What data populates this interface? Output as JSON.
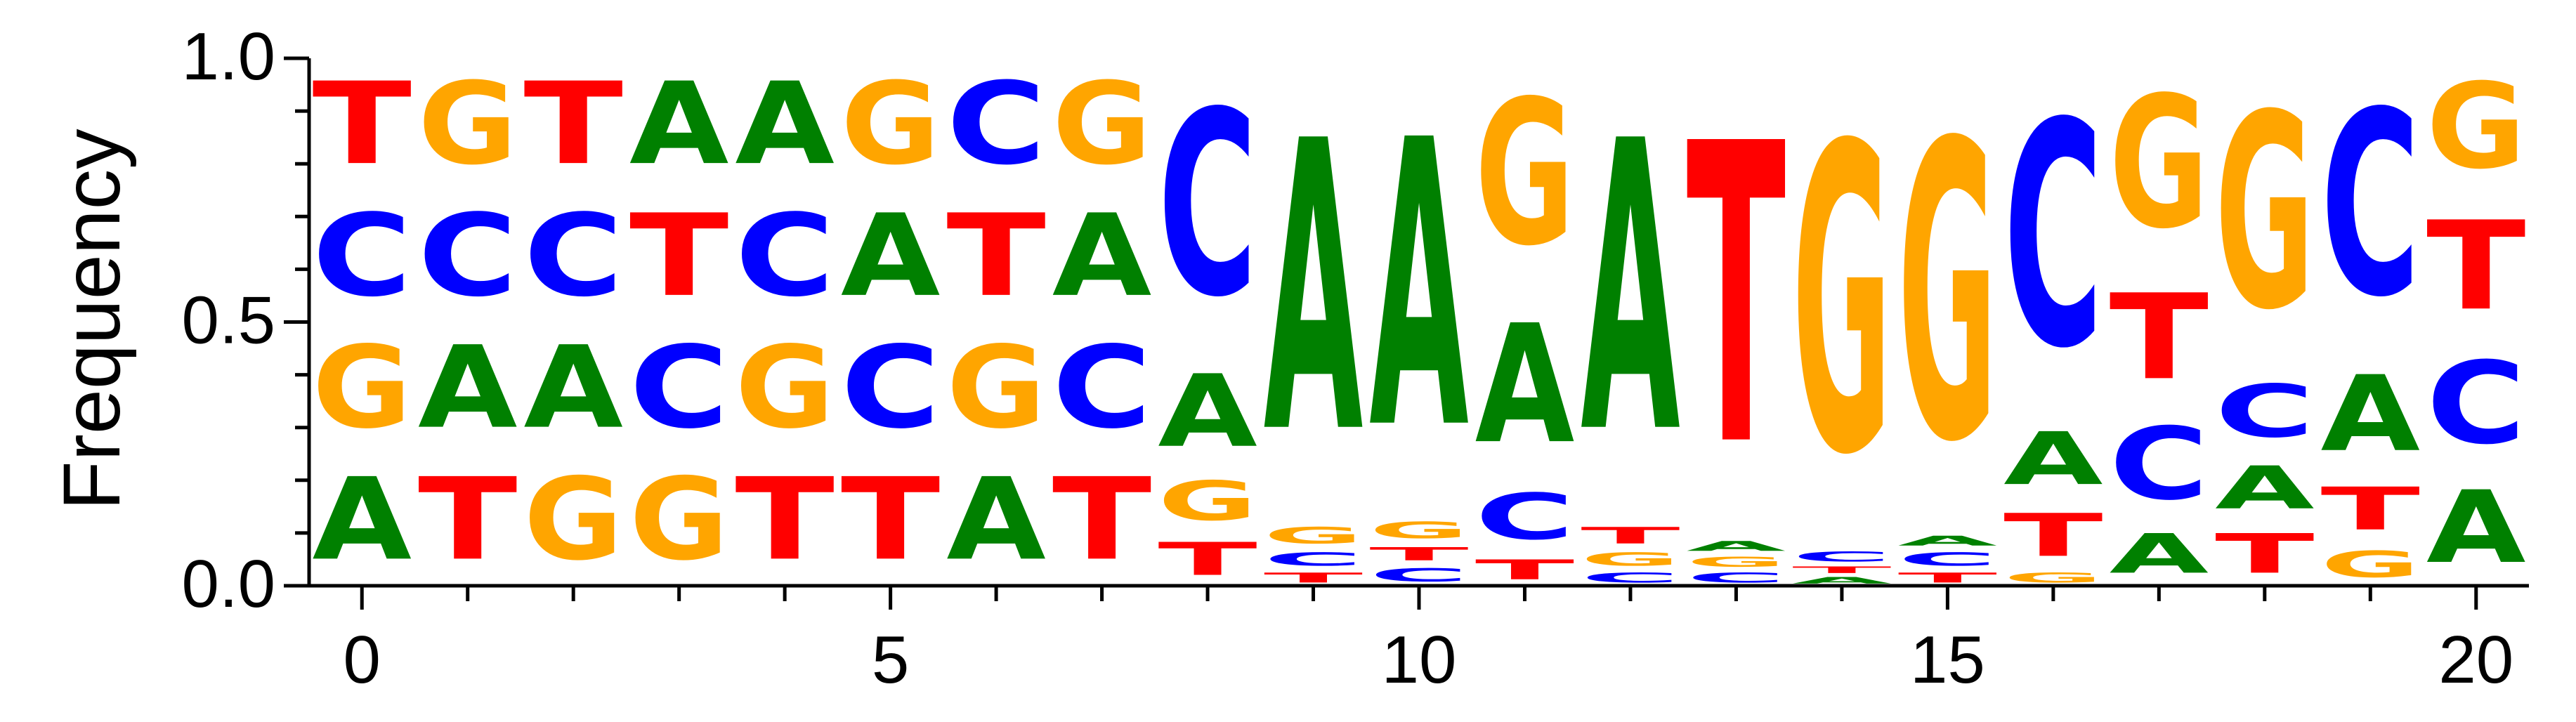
{
  "chart_data": {
    "type": "sequence-logo",
    "ylabel": "Frequency",
    "ylim": [
      0,
      1
    ],
    "xlim": [
      -0.5,
      20.5
    ],
    "x_ticks": [
      0,
      5,
      10,
      15,
      20
    ],
    "x_tick_labels": [
      "0",
      "5",
      "10",
      "15",
      "20"
    ],
    "y_ticks": [
      0.0,
      0.5,
      1.0
    ],
    "y_tick_labels": [
      "0.0",
      "0.5",
      "1.0"
    ],
    "colors": {
      "A": "#008000",
      "C": "#0000ff",
      "G": "#ffa500",
      "T": "#ff0000"
    },
    "positions": [
      {
        "pos": 0,
        "stack": [
          [
            "A",
            0.25
          ],
          [
            "G",
            0.25
          ],
          [
            "C",
            0.25
          ],
          [
            "T",
            0.25
          ]
        ]
      },
      {
        "pos": 1,
        "stack": [
          [
            "T",
            0.25
          ],
          [
            "A",
            0.25
          ],
          [
            "C",
            0.25
          ],
          [
            "G",
            0.25
          ]
        ]
      },
      {
        "pos": 2,
        "stack": [
          [
            "G",
            0.25
          ],
          [
            "A",
            0.25
          ],
          [
            "C",
            0.25
          ],
          [
            "T",
            0.25
          ]
        ]
      },
      {
        "pos": 3,
        "stack": [
          [
            "G",
            0.25
          ],
          [
            "C",
            0.25
          ],
          [
            "T",
            0.25
          ],
          [
            "A",
            0.25
          ]
        ]
      },
      {
        "pos": 4,
        "stack": [
          [
            "T",
            0.25
          ],
          [
            "G",
            0.25
          ],
          [
            "C",
            0.25
          ],
          [
            "A",
            0.25
          ]
        ]
      },
      {
        "pos": 5,
        "stack": [
          [
            "T",
            0.25
          ],
          [
            "C",
            0.25
          ],
          [
            "A",
            0.25
          ],
          [
            "G",
            0.25
          ]
        ]
      },
      {
        "pos": 6,
        "stack": [
          [
            "A",
            0.25
          ],
          [
            "G",
            0.25
          ],
          [
            "T",
            0.25
          ],
          [
            "C",
            0.25
          ]
        ]
      },
      {
        "pos": 7,
        "stack": [
          [
            "T",
            0.25
          ],
          [
            "C",
            0.25
          ],
          [
            "A",
            0.25
          ],
          [
            "G",
            0.25
          ]
        ]
      },
      {
        "pos": 8,
        "stack": [
          [
            "T",
            0.1
          ],
          [
            "G",
            0.12
          ],
          [
            "A",
            0.22
          ],
          [
            "C",
            0.56
          ]
        ]
      },
      {
        "pos": 9,
        "stack": [
          [
            "T",
            0.03
          ],
          [
            "C",
            0.04
          ],
          [
            "G",
            0.05
          ],
          [
            "A",
            0.88
          ]
        ]
      },
      {
        "pos": 10,
        "stack": [
          [
            "C",
            0.04
          ],
          [
            "T",
            0.04
          ],
          [
            "G",
            0.05
          ],
          [
            "A",
            0.87
          ]
        ]
      },
      {
        "pos": 11,
        "stack": [
          [
            "T",
            0.06
          ],
          [
            "C",
            0.14
          ],
          [
            "A",
            0.36
          ],
          [
            "G",
            0.44
          ]
        ]
      },
      {
        "pos": 12,
        "stack": [
          [
            "C",
            0.03
          ],
          [
            "G",
            0.04
          ],
          [
            "T",
            0.05
          ],
          [
            "A",
            0.88
          ]
        ]
      },
      {
        "pos": 13,
        "stack": [
          [
            "C",
            0.03
          ],
          [
            "G",
            0.03
          ],
          [
            "A",
            0.03
          ],
          [
            "T",
            0.91
          ]
        ]
      },
      {
        "pos": 14,
        "stack": [
          [
            "A",
            0.02
          ],
          [
            "T",
            0.02
          ],
          [
            "C",
            0.03
          ],
          [
            "G",
            0.93
          ]
        ]
      },
      {
        "pos": 15,
        "stack": [
          [
            "T",
            0.03
          ],
          [
            "C",
            0.04
          ],
          [
            "A",
            0.03
          ],
          [
            "G",
            0.9
          ]
        ]
      },
      {
        "pos": 16,
        "stack": [
          [
            "G",
            0.03
          ],
          [
            "T",
            0.13
          ],
          [
            "A",
            0.16
          ],
          [
            "C",
            0.68
          ]
        ]
      },
      {
        "pos": 17,
        "stack": [
          [
            "A",
            0.12
          ],
          [
            "C",
            0.22
          ],
          [
            "T",
            0.26
          ],
          [
            "G",
            0.4
          ]
        ]
      },
      {
        "pos": 18,
        "stack": [
          [
            "T",
            0.12
          ],
          [
            "A",
            0.13
          ],
          [
            "C",
            0.16
          ],
          [
            "G",
            0.59
          ]
        ]
      },
      {
        "pos": 19,
        "stack": [
          [
            "G",
            0.08
          ],
          [
            "T",
            0.13
          ],
          [
            "A",
            0.23
          ],
          [
            "C",
            0.56
          ]
        ]
      },
      {
        "pos": 20,
        "stack": [
          [
            "A",
            0.22
          ],
          [
            "C",
            0.25
          ],
          [
            "T",
            0.27
          ],
          [
            "G",
            0.26
          ]
        ]
      }
    ]
  }
}
